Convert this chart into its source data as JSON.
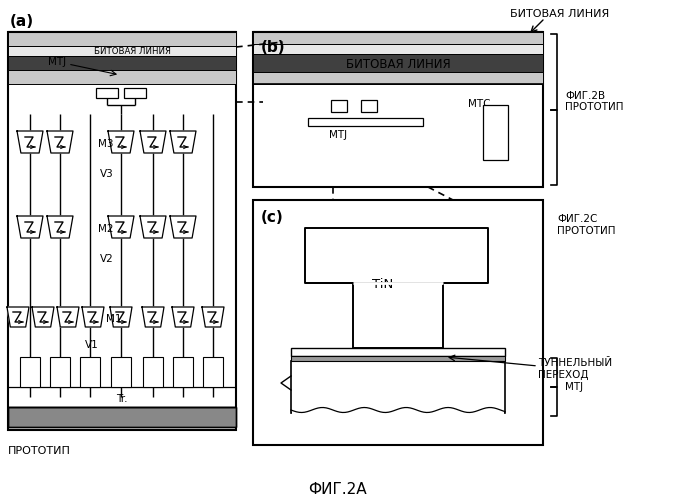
{
  "title": "ФИГ.2А",
  "bg_color": "#ffffff",
  "labels": {
    "top_right": "БИТОВАЯ ЛИНИЯ",
    "fig2b": "ФИГ.2В\nПРОТОТИП",
    "fig2c": "ФИГ.2С\nПРОТОТИП",
    "prototype_bottom": "ПРОТОТИП",
    "panel_a": "(a)",
    "panel_b": "(b)",
    "panel_c": "(c)",
    "mtj_a": "MTJ",
    "bit_line_a": "БИТОВАЯ ЛИНИЯ",
    "m3": "M3",
    "v3": "V3",
    "m2": "M2",
    "v2": "V2",
    "m1": "M1",
    "v1": "V1",
    "tr": "Tr.",
    "bit_line_b": "БИТОВАЯ ЛИНИЯ",
    "mtc": "МТС",
    "mtj_b": "MTJ",
    "tin": "TiN",
    "tunnel": "ТУННЕЛЬНЫЙ\nПЕРЕХОД",
    "mtj_c": "MTJ"
  }
}
